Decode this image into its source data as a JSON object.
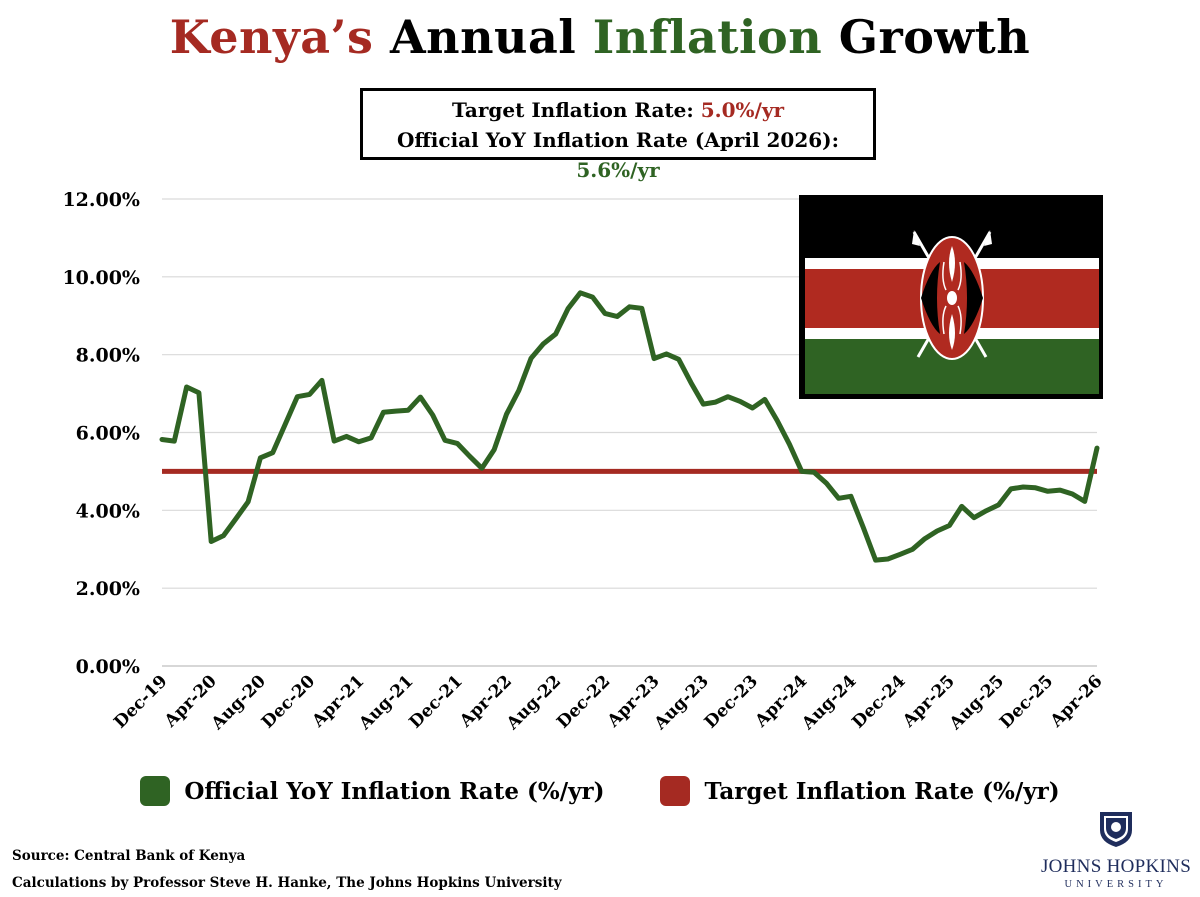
{
  "title": {
    "part1": "Kenya’s",
    "part2": "Annual",
    "part3": "Inflation",
    "part4": "Growth"
  },
  "infobox": {
    "line1_label": "Target Inflation Rate:",
    "line1_value": "5.0%/yr",
    "line2_label": "Official YoY Inflation Rate (April 2026):",
    "line2_value": "5.6%/yr"
  },
  "colors": {
    "official": "#2f6323",
    "target": "#a52a22",
    "gridline": "#d9d9d9"
  },
  "legend": {
    "official_label": "Official YoY Inflation Rate (%/yr)",
    "target_label": "Target Inflation Rate (%/yr)"
  },
  "source": {
    "line1": "Source: Central Bank of Kenya",
    "line2": "Calculations by Professor Steve H. Hanke, The Johns Hopkins University"
  },
  "logo": {
    "name": "JOHNS HOPKINS",
    "university": "UNIVERSITY"
  },
  "flag_icon": "kenya-flag",
  "chart_data": {
    "type": "line",
    "title": "",
    "xlabel": "",
    "ylabel": "",
    "ylim": [
      0,
      12
    ],
    "yticks": [
      "0.00%",
      "2.00%",
      "4.00%",
      "6.00%",
      "8.00%",
      "10.00%",
      "12.00%"
    ],
    "xtick_labels": [
      "Dec-19",
      "Apr-20",
      "Aug-20",
      "Dec-20",
      "Apr-21",
      "Aug-21",
      "Dec-21",
      "Apr-22",
      "Aug-22",
      "Dec-22",
      "Apr-23",
      "Aug-23",
      "Dec-23",
      "Apr-24",
      "Aug-24",
      "Dec-24",
      "Apr-25",
      "Aug-25",
      "Dec-25",
      "Apr-26"
    ],
    "grid": true,
    "legend_position": "bottom",
    "series": [
      {
        "name": "Official YoY Inflation Rate (%/yr)",
        "x": [
          "Dec-19",
          "Jan-20",
          "Feb-20",
          "Mar-20",
          "Apr-20",
          "May-20",
          "Jun-20",
          "Jul-20",
          "Aug-20",
          "Sep-20",
          "Oct-20",
          "Nov-20",
          "Dec-20",
          "Jan-21",
          "Feb-21",
          "Mar-21",
          "Apr-21",
          "May-21",
          "Jun-21",
          "Jul-21",
          "Aug-21",
          "Sep-21",
          "Oct-21",
          "Nov-21",
          "Dec-21",
          "Jan-22",
          "Feb-22",
          "Mar-22",
          "Apr-22",
          "May-22",
          "Jun-22",
          "Jul-22",
          "Aug-22",
          "Sep-22",
          "Oct-22",
          "Nov-22",
          "Dec-22",
          "Jan-23",
          "Feb-23",
          "Mar-23",
          "Apr-23",
          "May-23",
          "Jun-23",
          "Jul-23",
          "Aug-23",
          "Sep-23",
          "Oct-23",
          "Nov-23",
          "Dec-23",
          "Jan-24",
          "Feb-24",
          "Mar-24",
          "Apr-24",
          "May-24",
          "Jun-24",
          "Jul-24",
          "Aug-24",
          "Sep-24",
          "Oct-24",
          "Nov-24",
          "Dec-24",
          "Jan-25",
          "Feb-25",
          "Mar-25",
          "Apr-25",
          "May-25",
          "Jun-25",
          "Jul-25",
          "Aug-25",
          "Sep-25",
          "Oct-25",
          "Nov-25",
          "Dec-25",
          "Jan-26",
          "Feb-26",
          "Mar-26",
          "Apr-26"
        ],
        "values": [
          5.82,
          5.78,
          7.17,
          7.02,
          3.2,
          3.35,
          3.78,
          4.22,
          5.35,
          5.48,
          6.2,
          6.92,
          6.98,
          7.34,
          5.78,
          5.9,
          5.76,
          5.86,
          6.52,
          6.55,
          6.57,
          6.91,
          6.45,
          5.8,
          5.72,
          5.39,
          5.08,
          5.56,
          6.47,
          7.08,
          7.91,
          8.28,
          8.53,
          9.18,
          9.59,
          9.48,
          9.06,
          8.98,
          9.23,
          9.19,
          7.9,
          8.02,
          7.88,
          7.28,
          6.73,
          6.78,
          6.92,
          6.8,
          6.63,
          6.85,
          6.31,
          5.7,
          5.0,
          4.98,
          4.7,
          4.31,
          4.36,
          3.56,
          2.72,
          2.75,
          2.87,
          3.0,
          3.27,
          3.47,
          3.61,
          4.1,
          3.81,
          3.99,
          4.14,
          4.55,
          4.6,
          4.58,
          4.49,
          4.52,
          4.42,
          4.23,
          5.6
        ]
      },
      {
        "name": "Target Inflation Rate (%/yr)",
        "values": [
          5.0
        ]
      }
    ]
  }
}
